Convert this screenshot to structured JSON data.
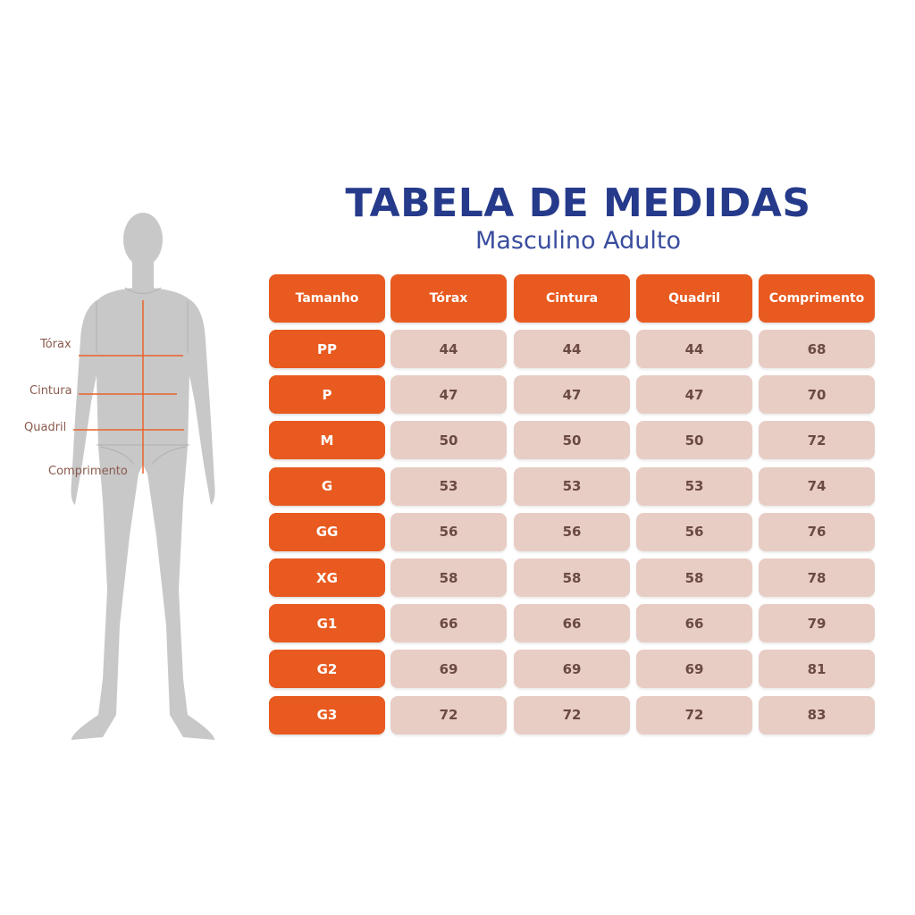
{
  "title": "TABELA DE MEDIDAS",
  "subtitle": "Masculino Adulto",
  "colors": {
    "title": "#253a8a",
    "header": "#e85a1f",
    "cell": "#e8cdc5",
    "cell_text": "#6b4a44",
    "figure": "#c8c8c8",
    "measure_line": "#e8622a"
  },
  "figure_labels": {
    "chest": "Tórax",
    "waist": "Cintura",
    "hip": "Quadril",
    "length": "Comprimento"
  },
  "table": {
    "columns": [
      "Tamanho",
      "Tórax",
      "Cintura",
      "Quadril",
      "Comprimento"
    ],
    "rows": [
      {
        "size": "PP",
        "values": [
          "44",
          "44",
          "44",
          "68"
        ]
      },
      {
        "size": "P",
        "values": [
          "47",
          "47",
          "47",
          "70"
        ]
      },
      {
        "size": "M",
        "values": [
          "50",
          "50",
          "50",
          "72"
        ]
      },
      {
        "size": "G",
        "values": [
          "53",
          "53",
          "53",
          "74"
        ]
      },
      {
        "size": "GG",
        "values": [
          "56",
          "56",
          "56",
          "76"
        ]
      },
      {
        "size": "XG",
        "values": [
          "58",
          "58",
          "58",
          "78"
        ]
      },
      {
        "size": "G1",
        "values": [
          "66",
          "66",
          "66",
          "79"
        ]
      },
      {
        "size": "G2",
        "values": [
          "69",
          "69",
          "69",
          "81"
        ]
      },
      {
        "size": "G3",
        "values": [
          "72",
          "72",
          "72",
          "83"
        ]
      }
    ]
  }
}
